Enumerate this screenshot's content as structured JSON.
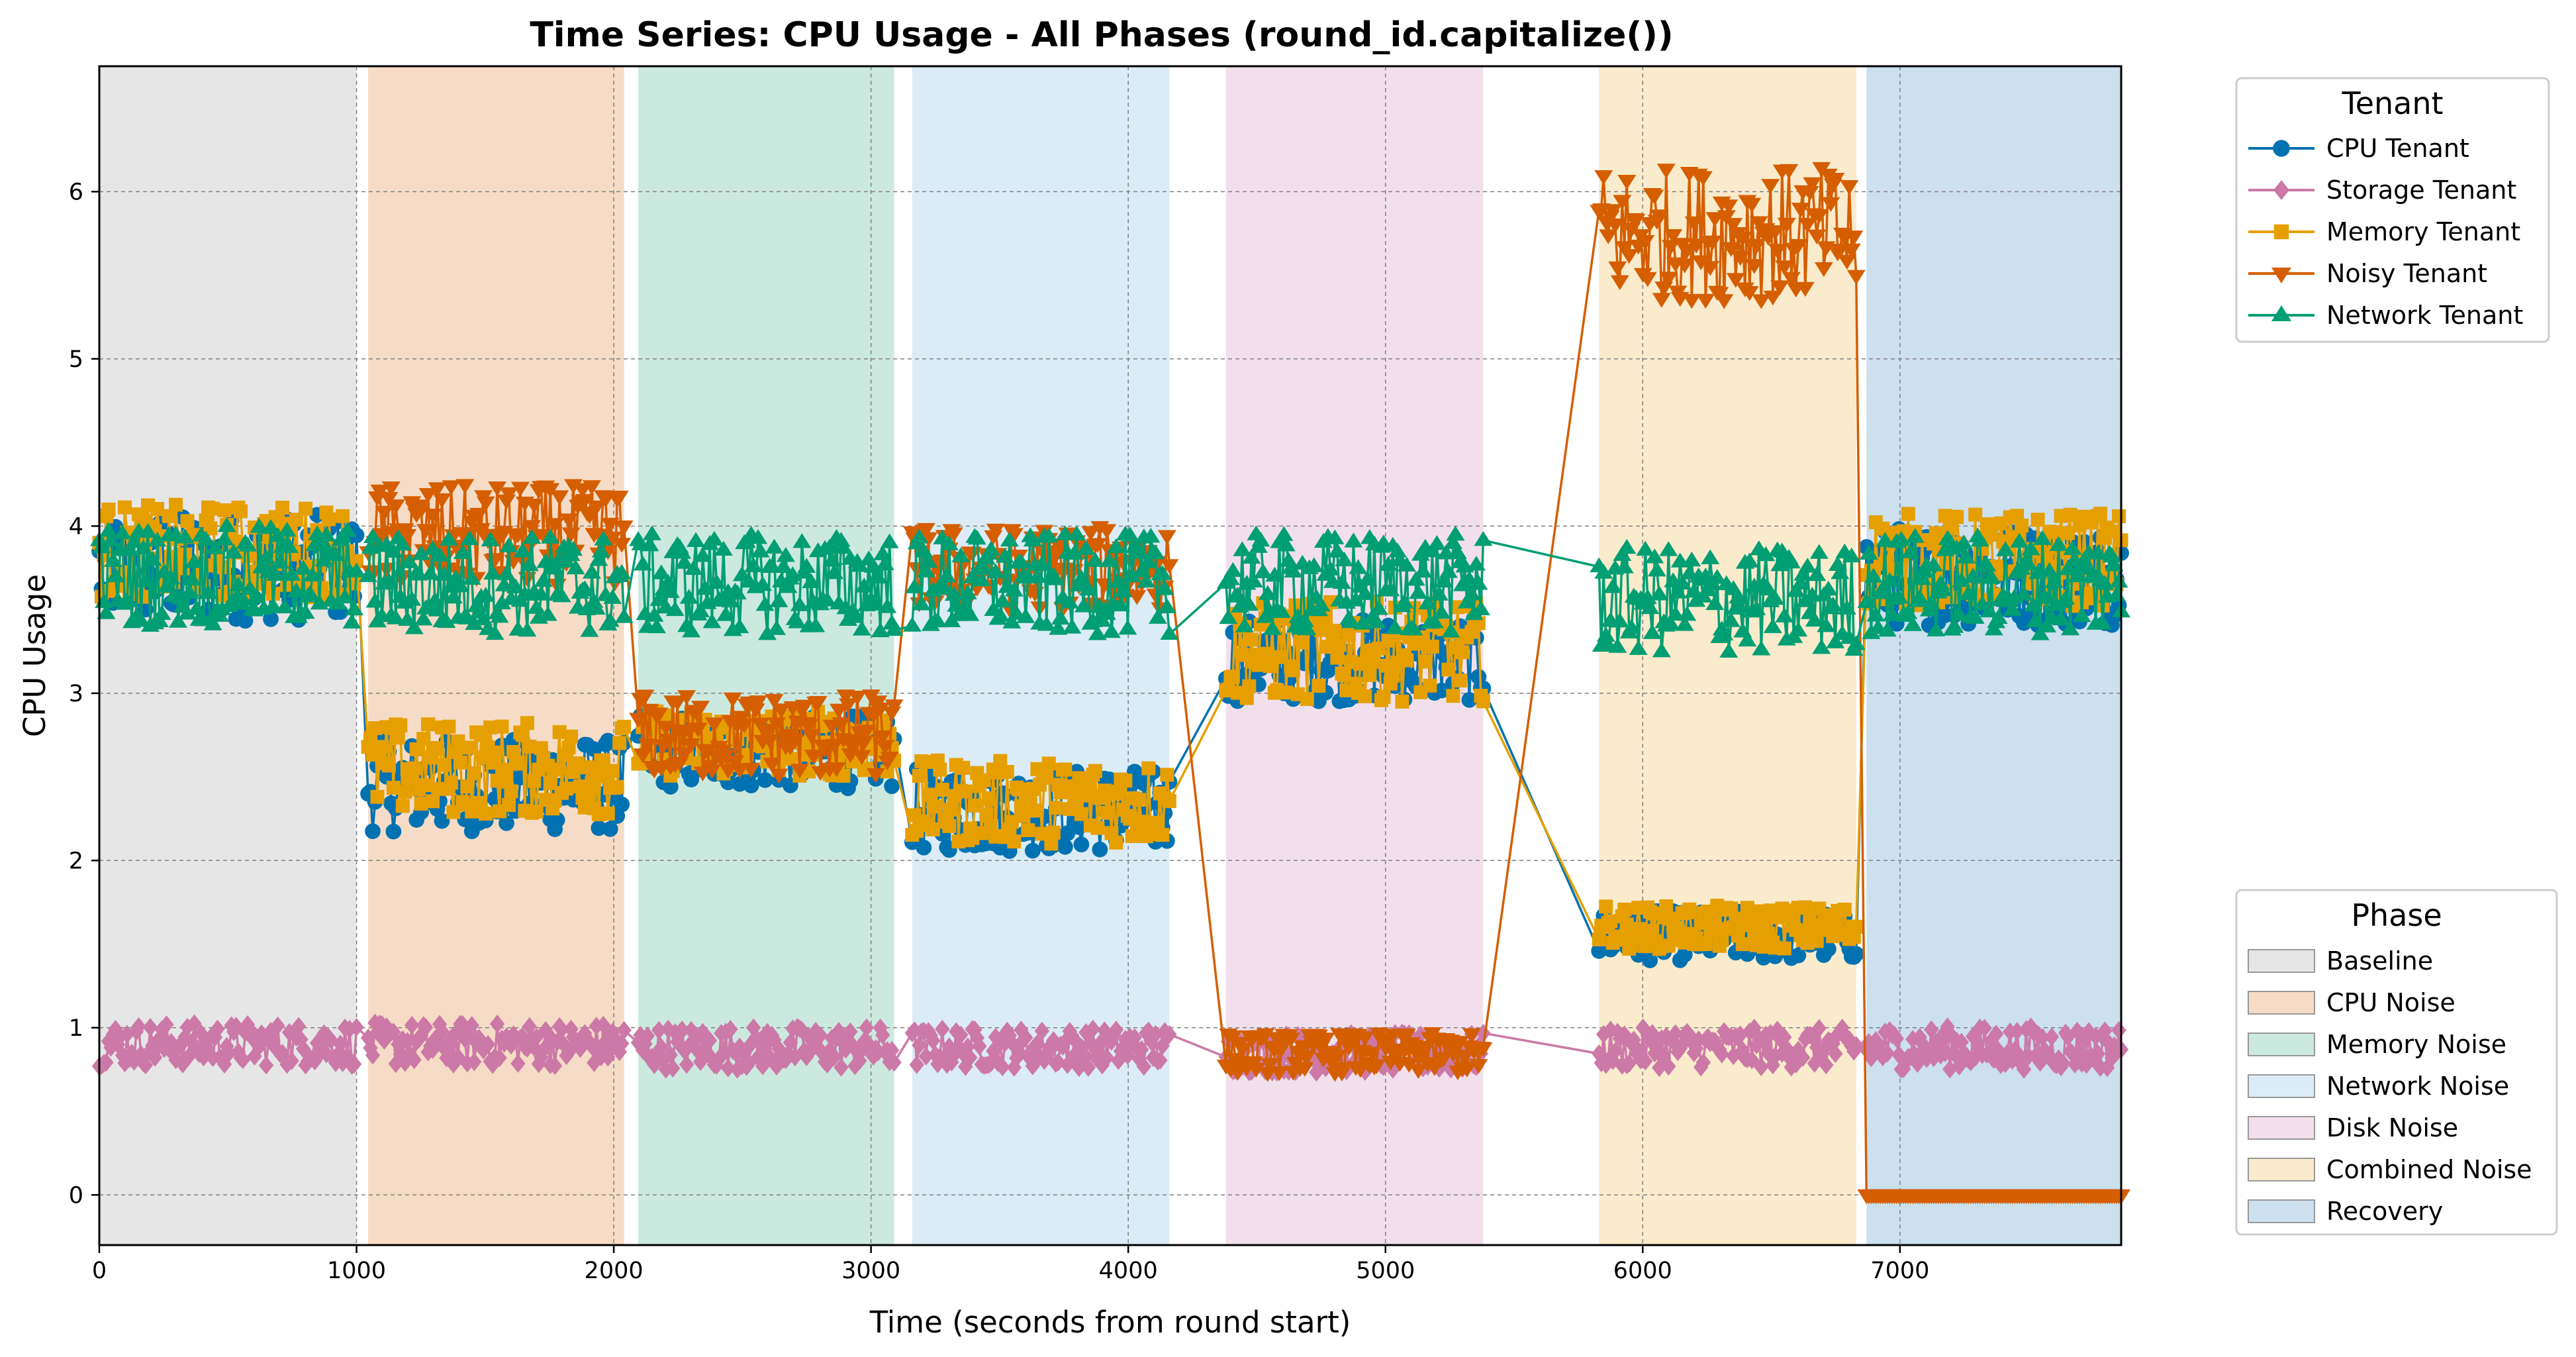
{
  "chart_data": {
    "type": "line",
    "title": "Time Series: CPU Usage - All Phases (round_id.capitalize())",
    "xlabel": "Time (seconds from round start)",
    "ylabel": "CPU Usage",
    "xlim": [
      0,
      7860
    ],
    "ylim": [
      -0.3,
      6.75
    ],
    "xticks": [
      0,
      1000,
      2000,
      3000,
      4000,
      5000,
      6000,
      7000
    ],
    "yticks": [
      0,
      1,
      2,
      3,
      4,
      5,
      6
    ],
    "grid": true,
    "phases": [
      {
        "name": "Baseline",
        "start": 0,
        "end": 1000,
        "color": "#e6e6e6"
      },
      {
        "name": "CPU Noise",
        "start": 1045,
        "end": 2040,
        "color": "#f6dcc6"
      },
      {
        "name": "Memory Noise",
        "start": 2095,
        "end": 3090,
        "color": "#cce9df"
      },
      {
        "name": "Network Noise",
        "start": 3160,
        "end": 4160,
        "color": "#dbecf6"
      },
      {
        "name": "Disk Noise",
        "start": 4380,
        "end": 5380,
        "color": "#f1e0ec"
      },
      {
        "name": "Combined Noise",
        "start": 5830,
        "end": 6830,
        "color": "#f9ebcc"
      },
      {
        "name": "Recovery",
        "start": 6870,
        "end": 7860,
        "color": "#cce0ee"
      }
    ],
    "series": [
      {
        "name": "CPU Tenant",
        "color": "#0072b2",
        "marker": "circle",
        "segments": [
          {
            "x_start": 0,
            "x_end": 1000,
            "mean": 3.75,
            "spread": 0.32
          },
          {
            "x_start": 1045,
            "x_end": 2040,
            "mean": 2.45,
            "spread": 0.28
          },
          {
            "x_start": 2095,
            "x_end": 3090,
            "mean": 2.65,
            "spread": 0.22
          },
          {
            "x_start": 3160,
            "x_end": 4160,
            "mean": 2.3,
            "spread": 0.25
          },
          {
            "x_start": 4380,
            "x_end": 5380,
            "mean": 3.2,
            "spread": 0.25
          },
          {
            "x_start": 5830,
            "x_end": 6830,
            "mean": 1.55,
            "spread": 0.15
          },
          {
            "x_start": 6870,
            "x_end": 7860,
            "mean": 3.7,
            "spread": 0.3
          }
        ]
      },
      {
        "name": "Storage Tenant",
        "color": "#cc79a7",
        "marker": "diamond",
        "segments": [
          {
            "x_start": 0,
            "x_end": 1000,
            "mean": 0.9,
            "spread": 0.13
          },
          {
            "x_start": 1045,
            "x_end": 2040,
            "mean": 0.9,
            "spread": 0.13
          },
          {
            "x_start": 2095,
            "x_end": 3090,
            "mean": 0.88,
            "spread": 0.13
          },
          {
            "x_start": 3160,
            "x_end": 4160,
            "mean": 0.88,
            "spread": 0.12
          },
          {
            "x_start": 4380,
            "x_end": 5380,
            "mean": 0.85,
            "spread": 0.12
          },
          {
            "x_start": 5830,
            "x_end": 6830,
            "mean": 0.88,
            "spread": 0.12
          },
          {
            "x_start": 6870,
            "x_end": 7860,
            "mean": 0.88,
            "spread": 0.13
          }
        ]
      },
      {
        "name": "Memory Tenant",
        "color": "#e69f00",
        "marker": "square",
        "segments": [
          {
            "x_start": 0,
            "x_end": 1000,
            "mean": 3.85,
            "spread": 0.28
          },
          {
            "x_start": 1045,
            "x_end": 2040,
            "mean": 2.55,
            "spread": 0.28
          },
          {
            "x_start": 2095,
            "x_end": 3090,
            "mean": 2.7,
            "spread": 0.2
          },
          {
            "x_start": 3160,
            "x_end": 4160,
            "mean": 2.35,
            "spread": 0.25
          },
          {
            "x_start": 4380,
            "x_end": 5380,
            "mean": 3.25,
            "spread": 0.3
          },
          {
            "x_start": 5830,
            "x_end": 6830,
            "mean": 1.6,
            "spread": 0.13
          },
          {
            "x_start": 6870,
            "x_end": 7860,
            "mean": 3.8,
            "spread": 0.28
          }
        ]
      },
      {
        "name": "Noisy Tenant",
        "color": "#d55e00",
        "marker": "triangle-down",
        "segments": [
          {
            "x_start": 1045,
            "x_end": 2040,
            "mean": 3.95,
            "spread": 0.3
          },
          {
            "x_start": 2095,
            "x_end": 3090,
            "mean": 2.75,
            "spread": 0.25
          },
          {
            "x_start": 3160,
            "x_end": 4160,
            "mean": 3.75,
            "spread": 0.25
          },
          {
            "x_start": 4380,
            "x_end": 5380,
            "mean": 0.85,
            "spread": 0.12
          },
          {
            "x_start": 5830,
            "x_end": 6830,
            "mean": 5.75,
            "spread": 0.4
          },
          {
            "x_start": 6870,
            "x_end": 7860,
            "mean": 0.0,
            "spread": 0.0
          }
        ]
      },
      {
        "name": "Network Tenant",
        "color": "#009e73",
        "marker": "triangle-up",
        "segments": [
          {
            "x_start": 0,
            "x_end": 1000,
            "mean": 3.7,
            "spread": 0.3
          },
          {
            "x_start": 1045,
            "x_end": 2040,
            "mean": 3.65,
            "spread": 0.3
          },
          {
            "x_start": 2095,
            "x_end": 3090,
            "mean": 3.65,
            "spread": 0.3
          },
          {
            "x_start": 3160,
            "x_end": 4160,
            "mean": 3.65,
            "spread": 0.3
          },
          {
            "x_start": 4380,
            "x_end": 5380,
            "mean": 3.65,
            "spread": 0.3
          },
          {
            "x_start": 5830,
            "x_end": 6830,
            "mean": 3.55,
            "spread": 0.32
          },
          {
            "x_start": 6870,
            "x_end": 7860,
            "mean": 3.65,
            "spread": 0.3
          }
        ]
      }
    ],
    "legends": {
      "tenant_title": "Tenant",
      "phase_title": "Phase",
      "tenant_position": "upper-right-outside",
      "phase_position": "lower-right-outside"
    }
  }
}
